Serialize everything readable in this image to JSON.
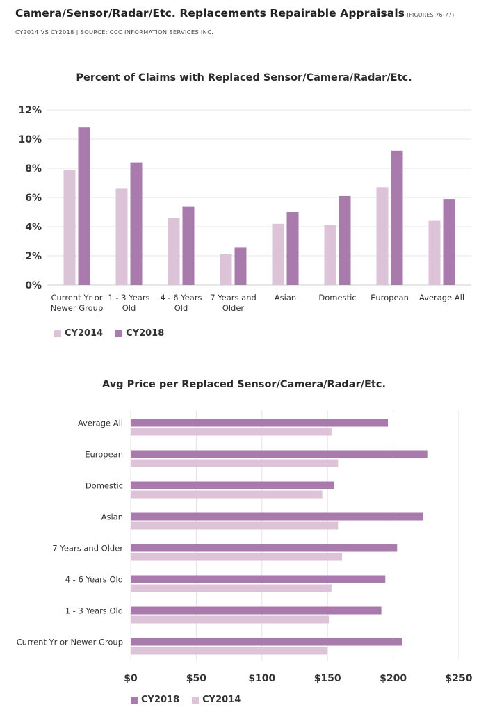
{
  "header": {
    "title": "Camera/Sensor/Radar/Etc. Replacements Repairable Appraisals",
    "figures": "(FIGURES 76-77)",
    "subtitle": "CY2014 VS CY2018  |  SOURCE: CCC INFORMATION SERVICES INC."
  },
  "colors": {
    "cy2014": "#dcc3d8",
    "cy2018": "#a97aac",
    "grid": "#e4e4e4"
  },
  "chart_data": [
    {
      "type": "bar",
      "orientation": "vertical",
      "title": "Percent of Claims with Replaced Sensor/Camera/Radar/Etc.",
      "categories": [
        [
          "Current Yr or",
          "Newer Group"
        ],
        [
          "1 - 3 Years",
          "Old"
        ],
        [
          "4 - 6 Years",
          "Old"
        ],
        [
          "7 Years and",
          "Older"
        ],
        [
          "Asian"
        ],
        [
          "Domestic"
        ],
        [
          "European"
        ],
        [
          "Average All"
        ]
      ],
      "series": [
        {
          "name": "CY2014",
          "values": [
            7.9,
            6.6,
            4.6,
            2.1,
            4.2,
            4.1,
            6.7,
            4.4
          ]
        },
        {
          "name": "CY2018",
          "values": [
            10.8,
            8.4,
            5.4,
            2.6,
            5.0,
            6.1,
            9.2,
            5.9
          ]
        }
      ],
      "yticks": [
        "0%",
        "2%",
        "4%",
        "6%",
        "8%",
        "10%",
        "12%"
      ],
      "ylim": [
        0,
        12
      ],
      "grid": true,
      "legend": "bottom-left",
      "legend_order": [
        "CY2014",
        "CY2018"
      ]
    },
    {
      "type": "bar",
      "orientation": "horizontal",
      "title": "Avg Price per Replaced Sensor/Camera/Radar/Etc.",
      "categories": [
        "Average All",
        "European",
        "Domestic",
        "Asian",
        "7 Years and Older",
        "4 - 6 Years Old",
        "1 - 3 Years Old",
        "Current Yr or Newer Group"
      ],
      "series": [
        {
          "name": "CY2018",
          "values": [
            196,
            226,
            155,
            223,
            203,
            194,
            191,
            207
          ]
        },
        {
          "name": "CY2014",
          "values": [
            153,
            158,
            146,
            158,
            161,
            153,
            151,
            150
          ]
        }
      ],
      "xticks": [
        "$0",
        "$50",
        "$100",
        "$150",
        "$200",
        "$250"
      ],
      "xlim": [
        0,
        250
      ],
      "grid": true,
      "legend": "bottom-left",
      "legend_order": [
        "CY2018",
        "CY2014"
      ]
    }
  ]
}
